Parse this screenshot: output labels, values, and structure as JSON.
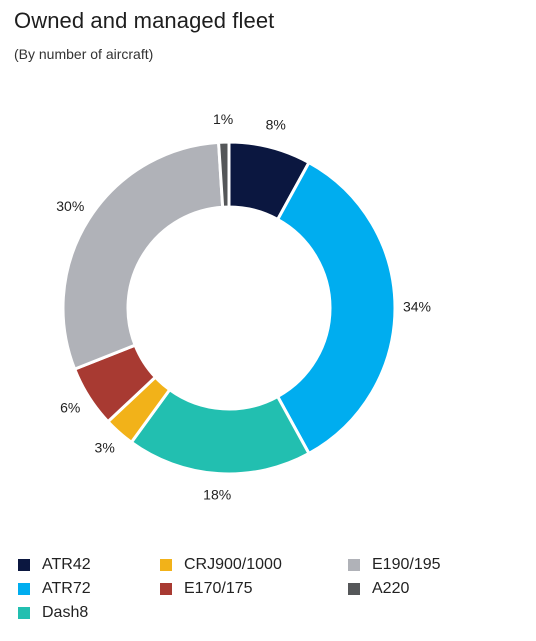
{
  "title": "Owned and managed fleet",
  "subtitle": "(By number of aircraft)",
  "chart_data": {
    "type": "pie",
    "variant": "donut",
    "title": "Owned and managed fleet",
    "subtitle": "(By number of aircraft)",
    "start": "12 o'clock, clockwise",
    "slices": [
      {
        "name": "ATR42",
        "value": 8,
        "label": "8%",
        "color": "#0b1740"
      },
      {
        "name": "ATR72",
        "value": 34,
        "label": "34%",
        "color": "#00adef"
      },
      {
        "name": "Dash8",
        "value": 18,
        "label": "18%",
        "color": "#22bfb0"
      },
      {
        "name": "CRJ900/1000",
        "value": 3,
        "label": "3%",
        "color": "#f2b219"
      },
      {
        "name": "E170/175",
        "value": 6,
        "label": "6%",
        "color": "#a83a32"
      },
      {
        "name": "E190/195",
        "value": 30,
        "label": "30%",
        "color": "#b0b2b8"
      },
      {
        "name": "A220",
        "value": 1,
        "label": "1%",
        "color": "#555759"
      }
    ],
    "legend": {
      "placement": "bottom",
      "order": [
        "ATR42",
        "CRJ900/1000",
        "E190/195",
        "ATR72",
        "E170/175",
        "A220",
        "Dash8"
      ]
    }
  }
}
